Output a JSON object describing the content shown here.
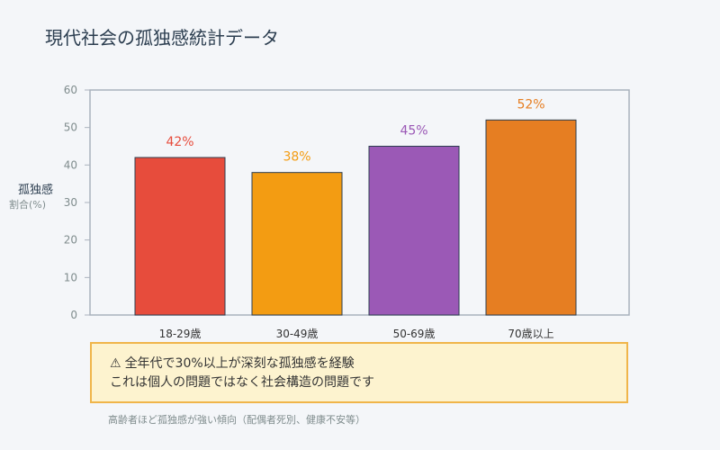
{
  "title": "現代社会の孤独感統計データ",
  "chart_data": {
    "type": "bar",
    "title": "現代社会の孤独感統計データ",
    "ylabel_main": "孤独感",
    "ylabel_sub": "割合(%)",
    "xlabel": "",
    "ylim": [
      0,
      60
    ],
    "yticks": [
      0,
      10,
      20,
      30,
      40,
      50,
      60
    ],
    "categories": [
      "18-29歳",
      "30-49歳",
      "50-69歳",
      "70歳以上"
    ],
    "values": [
      42,
      38,
      45,
      52
    ],
    "data_labels": [
      "42%",
      "38%",
      "45%",
      "52%"
    ],
    "colors": [
      "#e74c3c",
      "#f39c12",
      "#9b59b6",
      "#e67e22"
    ],
    "grid": false,
    "legend": "none"
  },
  "callout": {
    "icon": "⚠",
    "icon_name": "warning-icon",
    "line1": "全年代で30%以上が深刻な孤独感を経験",
    "line2": "これは個人の問題ではなく社会構造の問題です"
  },
  "footnote": "高齢者ほど孤独感が強い傾向（配偶者死別、健康不安等）"
}
